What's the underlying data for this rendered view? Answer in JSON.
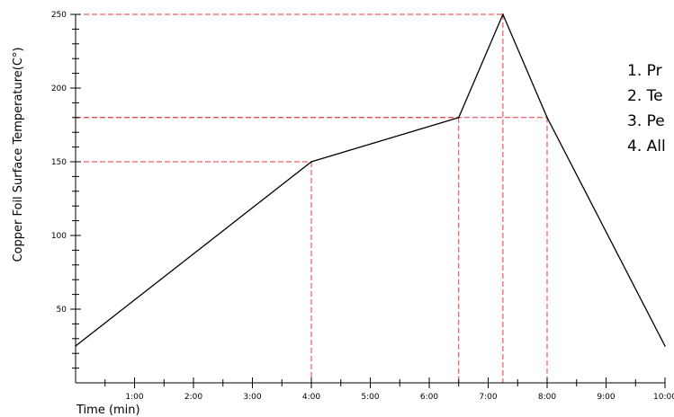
{
  "chart_data": {
    "type": "line",
    "title": "",
    "xlabel": "Time (min)",
    "ylabel": "Copper Foil Surface Temperature(C°)",
    "xlim": [
      0,
      10
    ],
    "ylim": [
      0,
      250
    ],
    "x_ticks": [
      {
        "value": 1,
        "label": "1:00"
      },
      {
        "value": 2,
        "label": "2:00"
      },
      {
        "value": 3,
        "label": "3:00"
      },
      {
        "value": 4,
        "label": "4:00"
      },
      {
        "value": 5,
        "label": "5:00"
      },
      {
        "value": 6,
        "label": "6:00"
      },
      {
        "value": 7,
        "label": "7:00"
      },
      {
        "value": 8,
        "label": "8:00"
      },
      {
        "value": 9,
        "label": "9:00"
      },
      {
        "value": 10,
        "label": "10:00"
      }
    ],
    "y_ticks": [
      {
        "value": 50,
        "label": "50"
      },
      {
        "value": 100,
        "label": "100"
      },
      {
        "value": 150,
        "label": "150"
      },
      {
        "value": 200,
        "label": "200"
      },
      {
        "value": 250,
        "label": "250"
      }
    ],
    "series": [
      {
        "name": "",
        "color": "#000000",
        "x": [
          0,
          4,
          6.5,
          7.25,
          8,
          10
        ],
        "y": [
          25,
          150,
          180,
          250,
          180,
          25
        ]
      }
    ],
    "reference_lines": [
      {
        "x": 4,
        "y": 150
      },
      {
        "x": 6.5,
        "y": 180
      },
      {
        "x": 8,
        "y": 180
      },
      {
        "x": 7.25,
        "y": 250
      }
    ],
    "reference_color": "#e8393b",
    "grid": false,
    "annotations": [
      {
        "text": "1. Pr"
      },
      {
        "text": "2. Te"
      },
      {
        "text": "3. Pe"
      },
      {
        "text": "4. All"
      }
    ]
  }
}
